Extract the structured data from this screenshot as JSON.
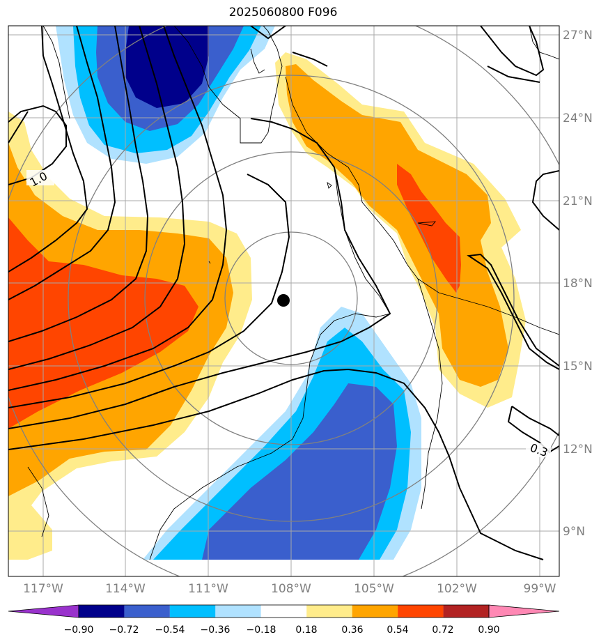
{
  "title": "2025060800 F096",
  "map": {
    "lat_ticks": [
      "27°N",
      "24°N",
      "21°N",
      "18°N",
      "15°N",
      "12°N",
      "9°N"
    ],
    "lon_ticks": [
      "117°W",
      "114°W",
      "111°W",
      "108°W",
      "105°W",
      "102°W",
      "99°W"
    ],
    "contour_labels": [
      "1.0",
      "0.3"
    ],
    "center_marker": {
      "lon": -108.3,
      "lat": 17.3
    }
  },
  "colorbar": {
    "ticks": [
      "−0.90",
      "−0.72",
      "−0.54",
      "−0.36",
      "−0.18",
      "0.18",
      "0.36",
      "0.54",
      "0.72",
      "0.90"
    ],
    "colors": [
      "#9932CC",
      "#00008B",
      "#3A5FCD",
      "#00BFFF",
      "#B0E2FF",
      "#FFFFFF",
      "#FFEC8B",
      "#FFA500",
      "#FF4500",
      "#B22222",
      "#FF88B4"
    ]
  },
  "colors": {
    "dark_blue": "#00008B",
    "royal_blue": "#3A5FCD",
    "sky_blue": "#00BFFF",
    "light_blue": "#B0E2FF",
    "light_yellow": "#FFEC8B",
    "orange": "#FFA500",
    "red_orange": "#FF4500",
    "grid": "#A0A0A0",
    "range_rings": "#808080"
  }
}
